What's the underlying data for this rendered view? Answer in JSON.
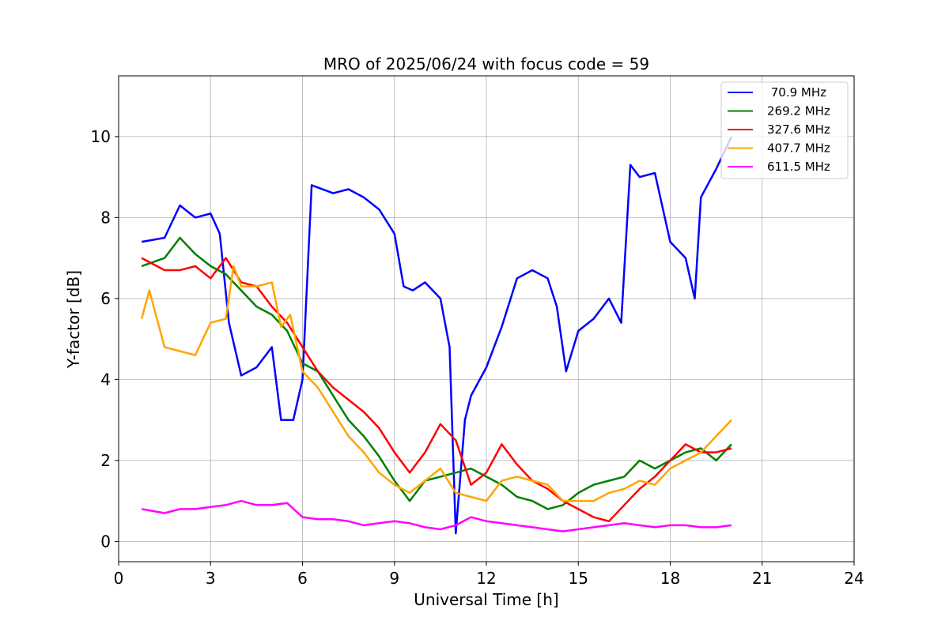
{
  "chart_data": {
    "type": "line",
    "title": "MRO of 2025/06/24 with focus code = 59",
    "xlabel": "Universal Time [h]",
    "ylabel": "Y-factor [dB]",
    "xlim": [
      0,
      24
    ],
    "ylim": [
      -0.5,
      11.5
    ],
    "xticks": [
      0,
      3,
      6,
      9,
      12,
      15,
      18,
      21,
      24
    ],
    "xtick_labels": [
      "0",
      "3",
      "6",
      "9",
      "12",
      "15",
      "18",
      "21",
      "24"
    ],
    "yticks": [
      0,
      2,
      4,
      6,
      8,
      10
    ],
    "ytick_labels": [
      "0",
      "2",
      "4",
      "6",
      "8",
      "10"
    ],
    "grid": true,
    "legend_position": "top-right",
    "series": [
      {
        "name": " 70.9 MHz",
        "color": "#0000ff",
        "x": [
          0.75,
          1.5,
          2.0,
          2.5,
          3.0,
          3.3,
          3.6,
          4.0,
          4.5,
          5.0,
          5.3,
          5.7,
          6.0,
          6.3,
          7.0,
          7.5,
          8.0,
          8.5,
          9.0,
          9.3,
          9.6,
          10.0,
          10.5,
          10.8,
          11.0,
          11.3,
          11.5,
          12.0,
          12.5,
          13.0,
          13.5,
          14.0,
          14.3,
          14.6,
          15.0,
          15.5,
          16.0,
          16.4,
          16.7,
          17.0,
          17.5,
          18.0,
          18.5,
          18.8,
          19.0,
          19.5,
          20.0
        ],
        "y": [
          7.4,
          7.5,
          8.3,
          8.0,
          8.1,
          7.6,
          5.4,
          4.1,
          4.3,
          4.8,
          3.0,
          3.0,
          4.0,
          8.8,
          8.6,
          8.7,
          8.5,
          8.2,
          7.6,
          6.3,
          6.2,
          6.4,
          6.0,
          4.8,
          0.2,
          3.0,
          3.6,
          4.3,
          5.3,
          6.5,
          6.7,
          6.5,
          5.8,
          4.2,
          5.2,
          5.5,
          6.0,
          5.4,
          9.3,
          9.0,
          9.1,
          7.4,
          7.0,
          6.0,
          8.5,
          9.2,
          10.0
        ]
      },
      {
        "name": "269.2 MHz",
        "color": "#008000",
        "x": [
          0.75,
          1.5,
          2.0,
          2.5,
          3.0,
          3.5,
          4.0,
          4.5,
          5.0,
          5.5,
          6.0,
          6.5,
          7.0,
          7.5,
          8.0,
          8.5,
          9.0,
          9.5,
          10.0,
          10.5,
          11.0,
          11.5,
          12.0,
          12.5,
          13.0,
          13.5,
          14.0,
          14.5,
          15.0,
          15.5,
          16.0,
          16.5,
          17.0,
          17.5,
          18.0,
          18.5,
          19.0,
          19.5,
          20.0
        ],
        "y": [
          6.8,
          7.0,
          7.5,
          7.1,
          6.8,
          6.6,
          6.2,
          5.8,
          5.6,
          5.2,
          4.4,
          4.2,
          3.6,
          3.0,
          2.6,
          2.1,
          1.5,
          1.0,
          1.5,
          1.6,
          1.7,
          1.8,
          1.6,
          1.4,
          1.1,
          1.0,
          0.8,
          0.9,
          1.2,
          1.4,
          1.5,
          1.6,
          2.0,
          1.8,
          2.0,
          2.2,
          2.3,
          2.0,
          2.4
        ]
      },
      {
        "name": "327.6 MHz",
        "color": "#ff0000",
        "x": [
          0.75,
          1.5,
          2.0,
          2.5,
          3.0,
          3.5,
          4.0,
          4.5,
          5.0,
          5.5,
          6.0,
          6.5,
          7.0,
          7.5,
          8.0,
          8.5,
          9.0,
          9.5,
          10.0,
          10.5,
          11.0,
          11.5,
          12.0,
          12.5,
          13.0,
          13.5,
          14.0,
          14.5,
          15.0,
          15.5,
          16.0,
          16.5,
          17.0,
          17.5,
          18.0,
          18.5,
          19.0,
          19.5,
          20.0
        ],
        "y": [
          7.0,
          6.7,
          6.7,
          6.8,
          6.5,
          7.0,
          6.4,
          6.3,
          5.8,
          5.4,
          4.8,
          4.2,
          3.8,
          3.5,
          3.2,
          2.8,
          2.2,
          1.7,
          2.2,
          2.9,
          2.5,
          1.4,
          1.7,
          2.4,
          1.9,
          1.5,
          1.3,
          1.0,
          0.8,
          0.6,
          0.5,
          0.9,
          1.3,
          1.6,
          2.0,
          2.4,
          2.2,
          2.2,
          2.3
        ]
      },
      {
        "name": "407.7 MHz",
        "color": "#ffa500",
        "x": [
          0.75,
          1.0,
          1.5,
          2.0,
          2.5,
          3.0,
          3.5,
          3.75,
          4.0,
          4.5,
          5.0,
          5.3,
          5.6,
          6.0,
          6.5,
          7.0,
          7.5,
          8.0,
          8.5,
          9.0,
          9.5,
          10.0,
          10.5,
          11.0,
          11.5,
          12.0,
          12.5,
          13.0,
          13.5,
          14.0,
          14.5,
          15.0,
          15.5,
          16.0,
          16.5,
          17.0,
          17.5,
          18.0,
          18.5,
          19.0,
          19.5,
          20.0
        ],
        "y": [
          5.5,
          6.2,
          4.8,
          4.7,
          4.6,
          5.4,
          5.5,
          6.8,
          6.3,
          6.3,
          6.4,
          5.3,
          5.6,
          4.2,
          3.8,
          3.2,
          2.6,
          2.2,
          1.7,
          1.4,
          1.2,
          1.5,
          1.8,
          1.2,
          1.1,
          1.0,
          1.5,
          1.6,
          1.5,
          1.4,
          1.0,
          1.0,
          1.0,
          1.2,
          1.3,
          1.5,
          1.4,
          1.8,
          2.0,
          2.2,
          2.6,
          3.0
        ]
      },
      {
        "name": "611.5 MHz",
        "color": "#ff00ff",
        "x": [
          0.75,
          1.5,
          2.0,
          2.5,
          3.0,
          3.5,
          4.0,
          4.5,
          5.0,
          5.5,
          6.0,
          6.5,
          7.0,
          7.5,
          8.0,
          8.5,
          9.0,
          9.5,
          10.0,
          10.5,
          11.0,
          11.5,
          12.0,
          12.5,
          13.0,
          13.5,
          14.0,
          14.5,
          15.0,
          15.5,
          16.0,
          16.5,
          17.0,
          17.5,
          18.0,
          18.5,
          19.0,
          19.5,
          20.0
        ],
        "y": [
          0.8,
          0.7,
          0.8,
          0.8,
          0.85,
          0.9,
          1.0,
          0.9,
          0.9,
          0.95,
          0.6,
          0.55,
          0.55,
          0.5,
          0.4,
          0.45,
          0.5,
          0.45,
          0.35,
          0.3,
          0.4,
          0.6,
          0.5,
          0.45,
          0.4,
          0.35,
          0.3,
          0.25,
          0.3,
          0.35,
          0.4,
          0.45,
          0.4,
          0.35,
          0.4,
          0.4,
          0.35,
          0.35,
          0.4
        ]
      }
    ]
  }
}
